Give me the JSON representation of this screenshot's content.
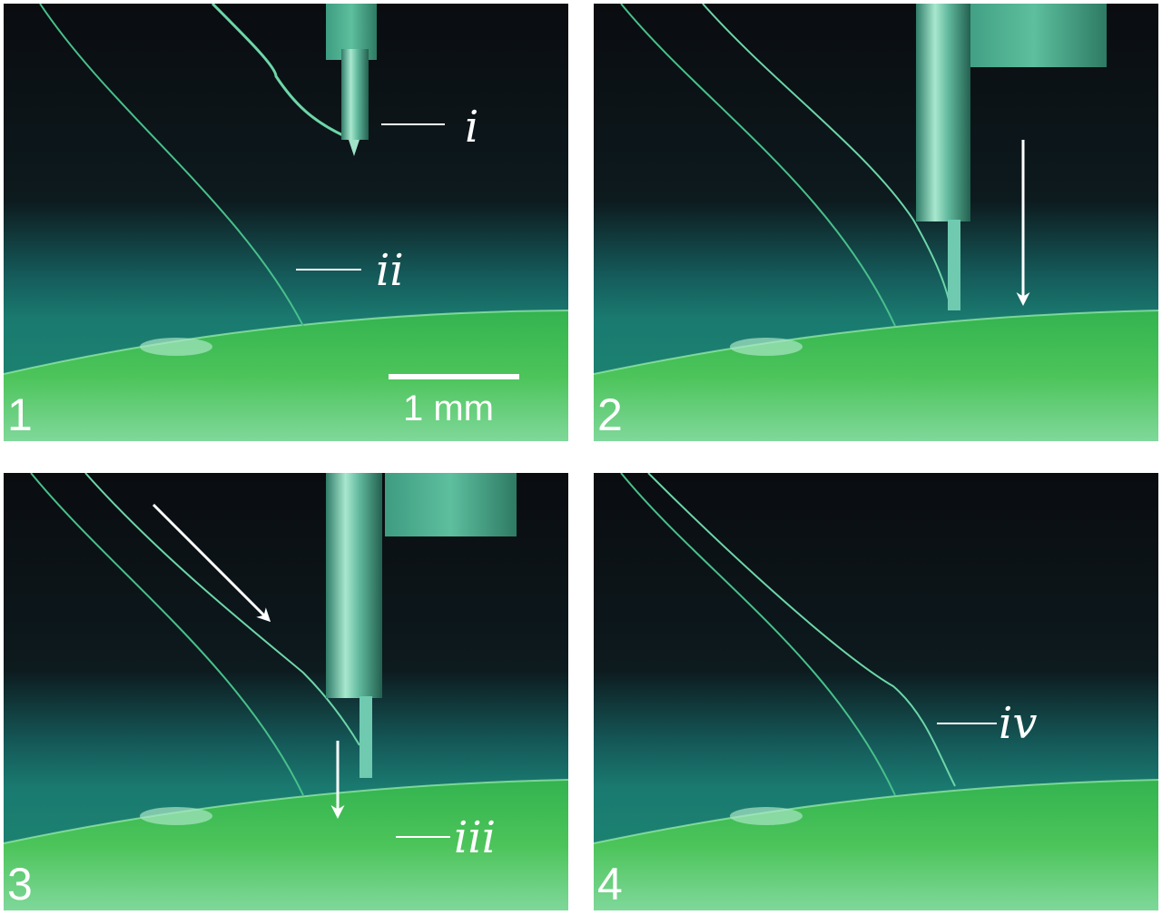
{
  "panels": [
    {
      "number": "1",
      "label": "i",
      "label2": "ii",
      "scale_bar": "1 mm"
    },
    {
      "number": "2"
    },
    {
      "number": "3",
      "label": "iii"
    },
    {
      "number": "4",
      "label": "iv"
    }
  ],
  "colors": {
    "background_dark": "#0b0f12",
    "gel_green": "#3fbf55",
    "fiber": "#48c08a",
    "annotation": "#ffffff"
  }
}
